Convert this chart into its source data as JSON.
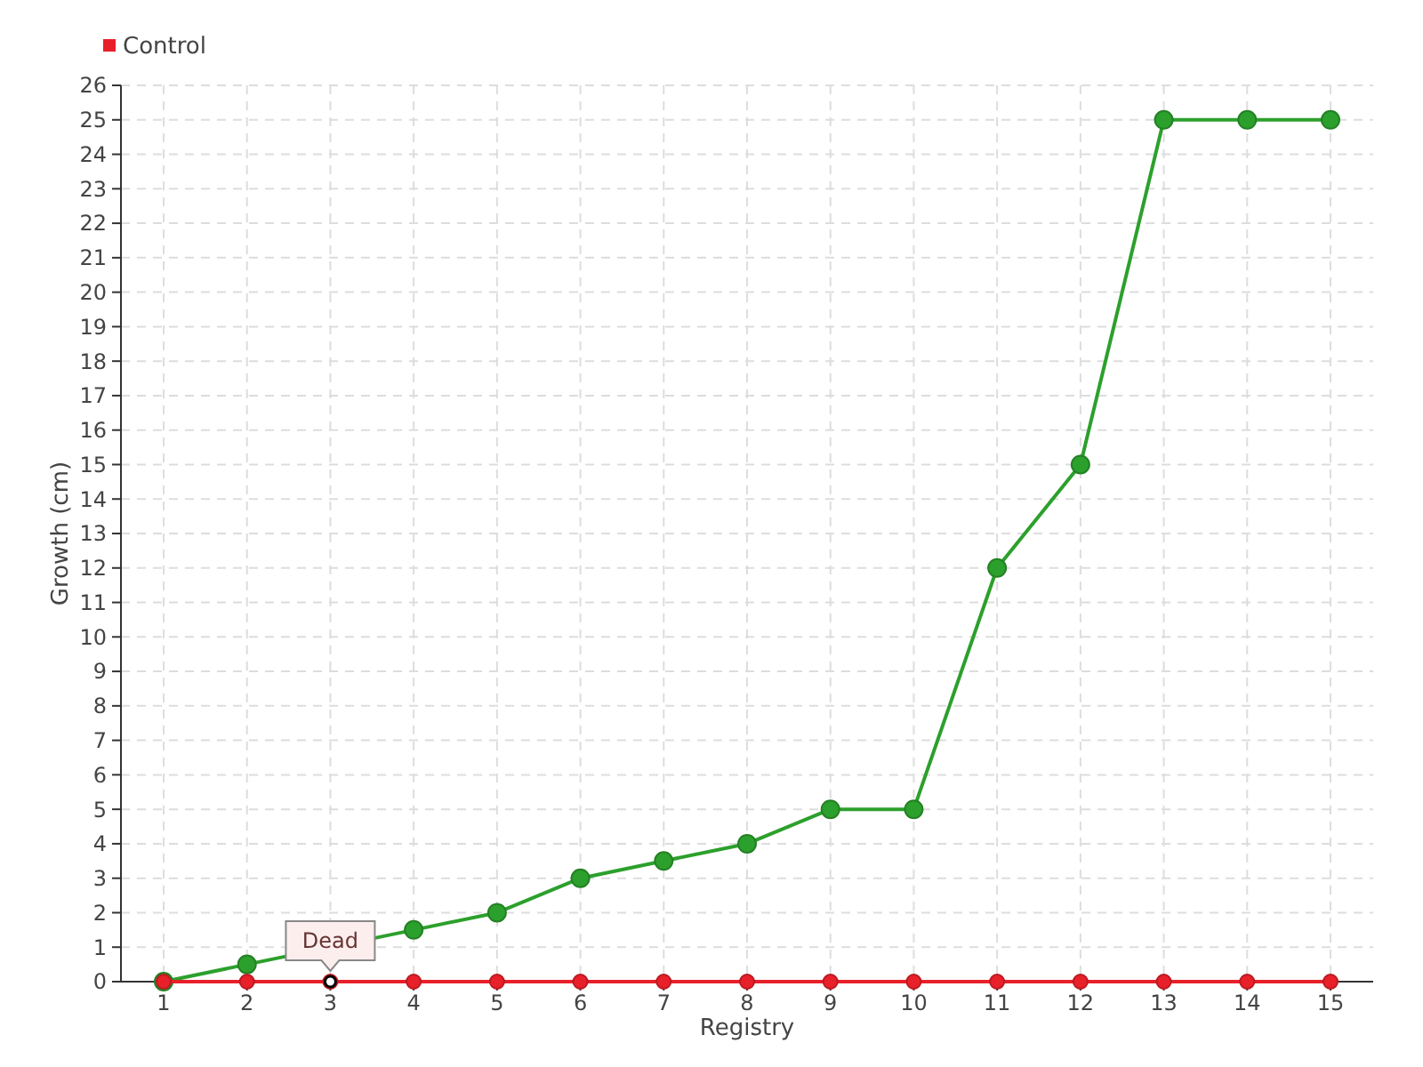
{
  "chart_data": {
    "type": "line",
    "xlabel": "Registry",
    "ylabel": "Growth (cm)",
    "categories": [
      "1",
      "2",
      "3",
      "4",
      "5",
      "6",
      "7",
      "8",
      "9",
      "10",
      "11",
      "12",
      "13",
      "14",
      "15"
    ],
    "series": [
      {
        "color": "#2ca02c",
        "values": [
          0,
          0.5,
          null,
          1.5,
          2,
          3,
          3.5,
          4,
          5,
          5,
          12,
          15,
          25,
          25,
          25
        ]
      },
      {
        "name": "Control",
        "color": "#e8202a",
        "values": [
          0,
          0,
          0,
          0,
          0,
          0,
          0,
          0,
          0,
          0,
          0,
          0,
          0,
          0,
          0
        ]
      }
    ],
    "ylim": [
      0,
      26
    ],
    "yticks": [
      0,
      1,
      2,
      3,
      4,
      5,
      6,
      7,
      8,
      9,
      10,
      11,
      12,
      13,
      14,
      15,
      16,
      17,
      18,
      19,
      20,
      21,
      22,
      23,
      24,
      25,
      26
    ],
    "grid": true,
    "legend": "top left",
    "marker": "circle",
    "annotations": [
      {
        "text": "Dead",
        "x": "3",
        "y": 0
      }
    ]
  }
}
